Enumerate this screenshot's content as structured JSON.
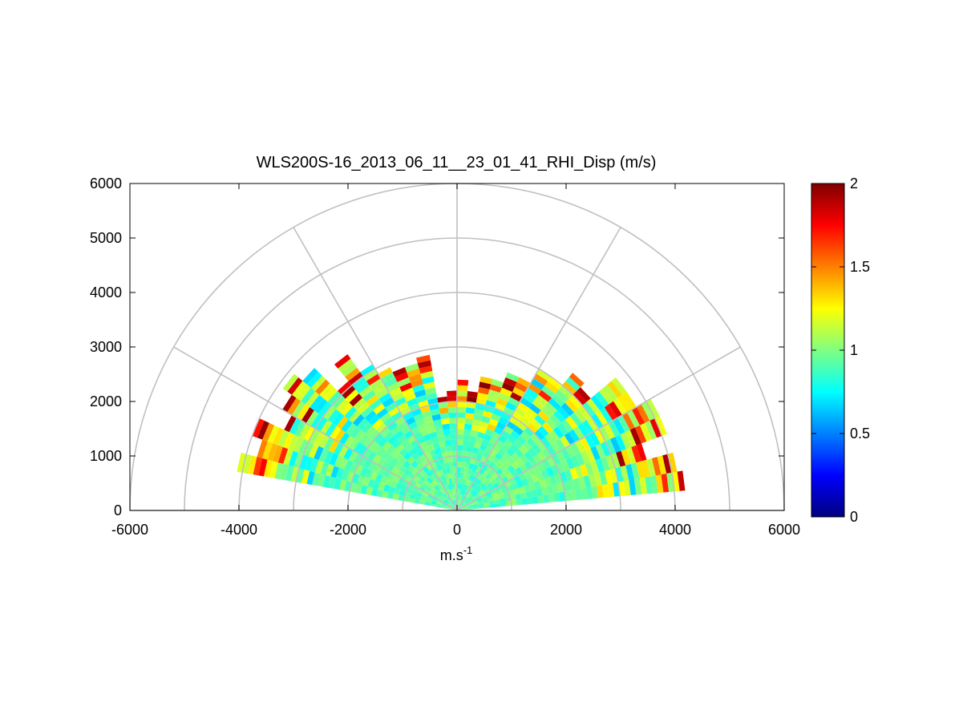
{
  "chart_data": {
    "type": "heatmap",
    "subtype": "polar-rhi-sector",
    "title": "WLS200S-16_2013_06_11__23_01_41_RHI_Disp (m/s)",
    "xlabel_base": "m.s",
    "xlabel_sup": "-1",
    "ylabel": "",
    "xlim": [
      -6000,
      6000
    ],
    "ylim": [
      0,
      6000
    ],
    "xticks": [
      -6000,
      -4000,
      -2000,
      0,
      2000,
      4000,
      6000
    ],
    "yticks": [
      0,
      1000,
      2000,
      3000,
      4000,
      5000,
      6000
    ],
    "polar_grid": {
      "ring_radii": [
        1000,
        2000,
        3000,
        4000,
        5000,
        6000
      ],
      "spoke_angles_deg": [
        0,
        30,
        60,
        90,
        120,
        150,
        180
      ],
      "color": "#c0c0c0"
    },
    "colorbar": {
      "colormap": "jet",
      "range": [
        0,
        2
      ],
      "ticks": [
        0,
        0.5,
        1,
        1.5,
        2
      ]
    },
    "scan": {
      "elevation_deg_min": 5,
      "elevation_deg_max": 170,
      "elevation_step_deg": 5,
      "range_min_m": 0,
      "range_step_m": 100,
      "typical_max_range_m": 3900,
      "core_value": 0.92,
      "edge_value": 1.9
    }
  }
}
